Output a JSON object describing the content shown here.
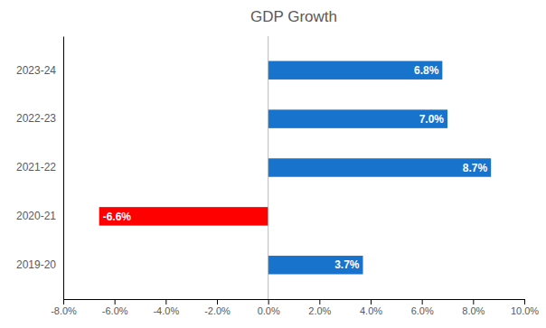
{
  "chart_data": {
    "type": "bar",
    "orientation": "horizontal",
    "title": "GDP Growth",
    "categories": [
      "2019-20",
      "2020-21",
      "2021-22",
      "2022-23",
      "2023-24"
    ],
    "values": [
      3.7,
      -6.6,
      8.7,
      7.0,
      6.8
    ],
    "value_labels": [
      "3.7%",
      "-6.6%",
      "8.7%",
      "7.0%",
      "6.8%"
    ],
    "data_labels": true,
    "colors": [
      "#1873CC",
      "#FF0000",
      "#1873CC",
      "#1873CC",
      "#1873CC"
    ],
    "xlim": [
      -8.0,
      10.0
    ],
    "xticks": [
      {
        "value": -8.0,
        "label": "-8.0%"
      },
      {
        "value": -6.0,
        "label": "-6.0%"
      },
      {
        "value": -4.0,
        "label": "-4.0%"
      },
      {
        "value": -2.0,
        "label": "-2.0%"
      },
      {
        "value": 0.0,
        "label": "0.0%"
      },
      {
        "value": 2.0,
        "label": "2.0%"
      },
      {
        "value": 4.0,
        "label": "4.0%"
      },
      {
        "value": 6.0,
        "label": "6.0%"
      },
      {
        "value": 8.0,
        "label": "8.0%"
      },
      {
        "value": 10.0,
        "label": "10.0%"
      }
    ],
    "grid": false
  }
}
